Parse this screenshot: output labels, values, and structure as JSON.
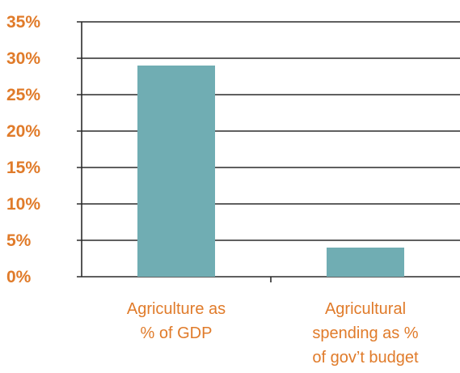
{
  "colors": {
    "bar": "#70adb3",
    "axis_text": "#e07b2a",
    "gridline": "#2b2b2b",
    "background": "#ffffff"
  },
  "chart_data": {
    "type": "bar",
    "title": "",
    "xlabel": "",
    "ylabel": "",
    "categories": [
      [
        "Agriculture as",
        "% of GDP"
      ],
      [
        "Agricultural",
        "spending as %",
        "of gov’t budget"
      ]
    ],
    "values": [
      29,
      4
    ],
    "value_unit": "%",
    "ylim": [
      0,
      35
    ],
    "y_ticks": [
      "0%",
      "5%",
      "10%",
      "15%",
      "20%",
      "25%",
      "30%",
      "35%"
    ],
    "grid": "horizontal",
    "legend": "none"
  }
}
